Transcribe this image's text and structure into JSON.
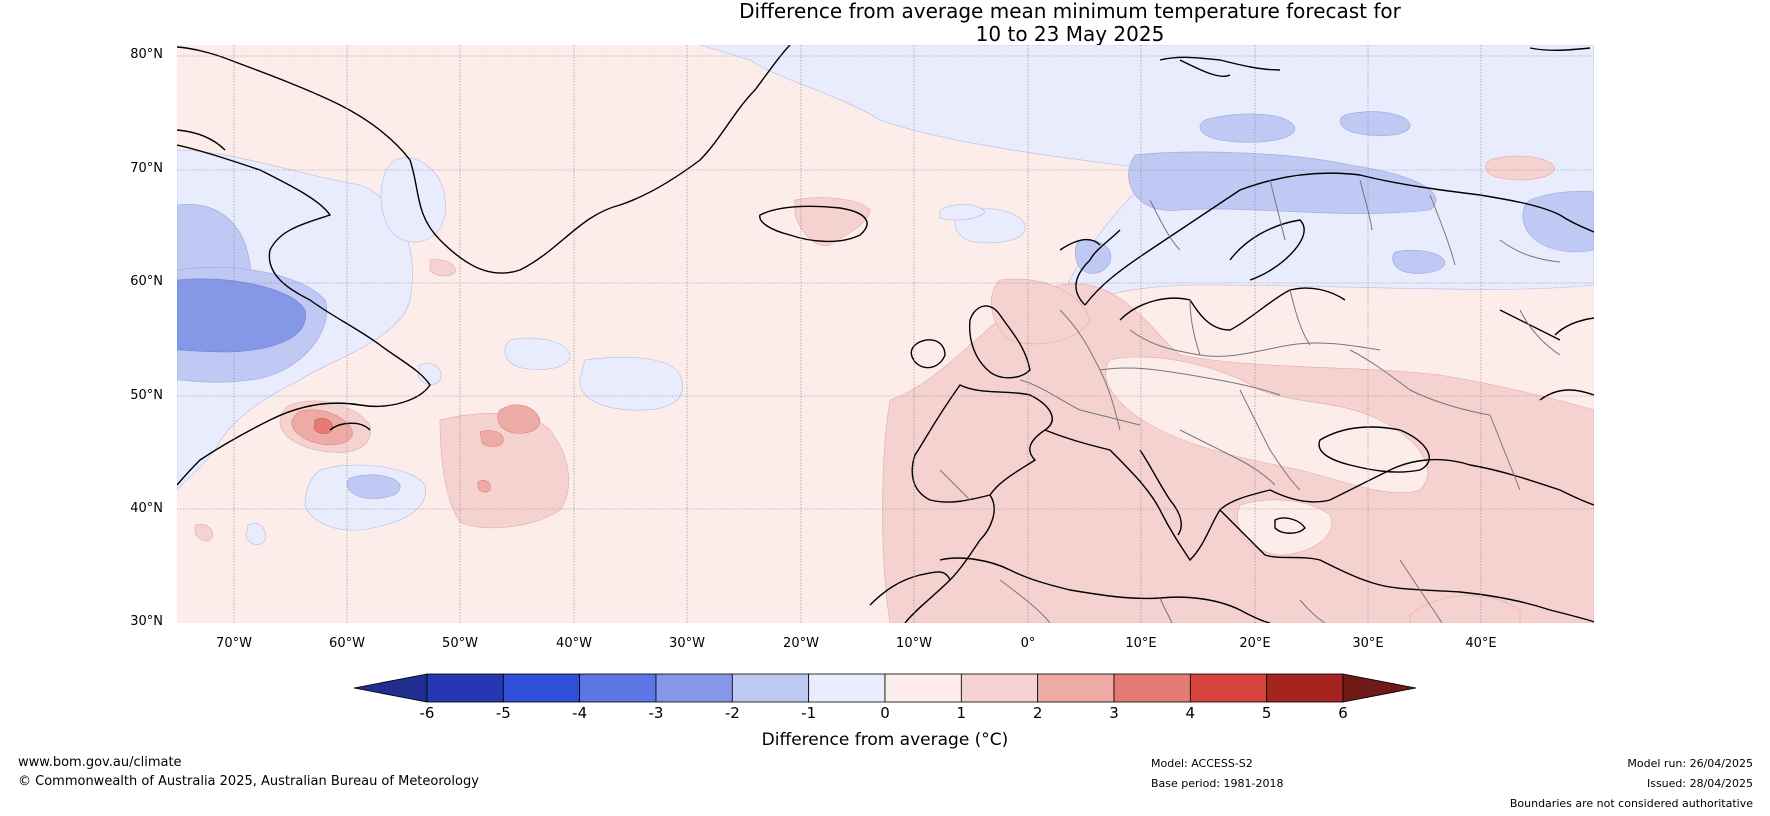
{
  "title": {
    "line1": "Difference from average mean minimum temperature forecast for",
    "line2": "10 to 23 May 2025"
  },
  "latitudes": [
    "80°N",
    "70°N",
    "60°N",
    "50°N",
    "40°N",
    "30°N"
  ],
  "longitudes": [
    "70°W",
    "60°W",
    "50°W",
    "40°W",
    "30°W",
    "20°W",
    "10°W",
    "0°",
    "10°E",
    "20°E",
    "30°E",
    "40°E"
  ],
  "colorbar": {
    "ticks": [
      "-6",
      "-5",
      "-4",
      "-3",
      "-2",
      "-1",
      "0",
      "1",
      "2",
      "3",
      "4",
      "5",
      "6"
    ],
    "colors": [
      "#1f2e8f",
      "#2438b2",
      "#2f4fdb",
      "#5c77e3",
      "#8598e8",
      "#c0c9f3",
      "#e8ecfc",
      "#fcecea",
      "#f5d2cf",
      "#eeaaa5",
      "#e47c75",
      "#d8443b",
      "#a6241f",
      "#6e1a16"
    ],
    "label": "Difference from average (°C)"
  },
  "footer": {
    "website": "www.bom.gov.au/climate",
    "copyright": "© Commonwealth of Australia 2025, Australian Bureau of Meteorology",
    "model": "Model: ACCESS-S2",
    "base_period": "Base period: 1981-2018",
    "model_run": "Model run: 26/04/2025",
    "issued": "Issued: 28/04/2025",
    "disclaimer": "Boundaries are not considered authoritative"
  }
}
